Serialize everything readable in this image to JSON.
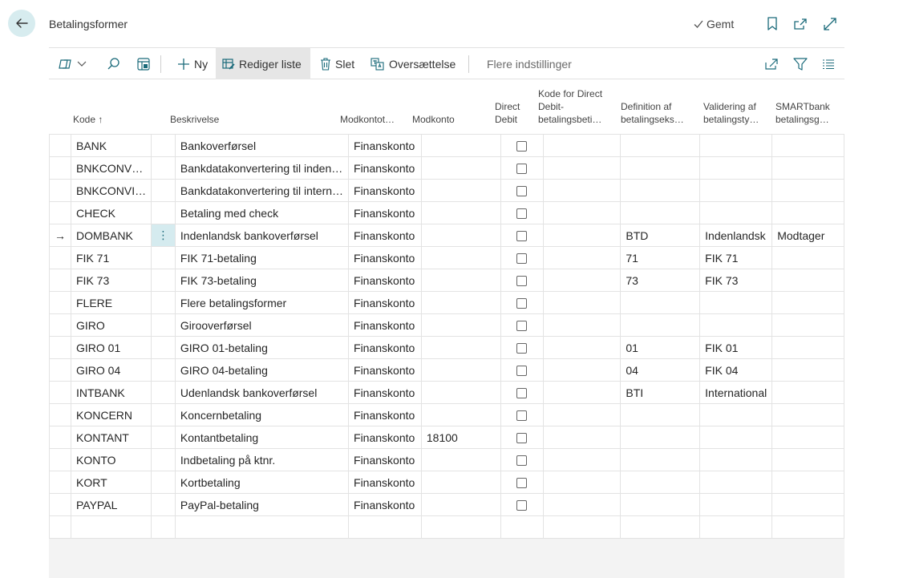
{
  "header": {
    "title": "Betalingsformer",
    "saved_label": "Gemt"
  },
  "toolbar": {
    "new_label": "Ny",
    "edit_list_label": "Rediger liste",
    "delete_label": "Slet",
    "translation_label": "Oversættelse",
    "more_options_label": "Flere indstillinger"
  },
  "columns": [
    {
      "label": "Kode ↑"
    },
    {
      "label": "Beskrivelse"
    },
    {
      "label": "Modkontot…"
    },
    {
      "label": "Modkonto"
    },
    {
      "label": "Direct\nDebit"
    },
    {
      "label": "Kode for Direct\nDebit-\nbetalingsbeti…"
    },
    {
      "label": "Definition af\nbetalingseks…"
    },
    {
      "label": "Validering af\nbetalingsty…"
    },
    {
      "label": "SMARTbank\nbetalingsg…"
    }
  ],
  "rows": [
    {
      "kode": "BANK",
      "beskrivelse": "Bankoverførsel",
      "modkontotype": "Finanskonto",
      "modkonto": "",
      "definition": "",
      "validering": "",
      "smartbank": ""
    },
    {
      "kode": "BNKCONV…",
      "beskrivelse": "Bankdatakonvertering til inden…",
      "modkontotype": "Finanskonto",
      "modkonto": "",
      "definition": "",
      "validering": "",
      "smartbank": ""
    },
    {
      "kode": "BNKCONVI…",
      "beskrivelse": "Bankdatakonvertering til intern…",
      "modkontotype": "Finanskonto",
      "modkonto": "",
      "definition": "",
      "validering": "",
      "smartbank": ""
    },
    {
      "kode": "CHECK",
      "beskrivelse": "Betaling med check",
      "modkontotype": "Finanskonto",
      "modkonto": "",
      "definition": "",
      "validering": "",
      "smartbank": ""
    },
    {
      "kode": "DOMBANK",
      "beskrivelse": "Indenlandsk bankoverførsel",
      "modkontotype": "Finanskonto",
      "modkonto": "",
      "definition": "BTD",
      "validering": "Indenlandsk",
      "smartbank": "Modtager"
    },
    {
      "kode": "FIK 71",
      "beskrivelse": "FIK 71-betaling",
      "modkontotype": "Finanskonto",
      "modkonto": "",
      "definition": "71",
      "validering": "FIK 71",
      "smartbank": ""
    },
    {
      "kode": "FIK 73",
      "beskrivelse": "FIK 73-betaling",
      "modkontotype": "Finanskonto",
      "modkonto": "",
      "definition": "73",
      "validering": "FIK 73",
      "smartbank": ""
    },
    {
      "kode": "FLERE",
      "beskrivelse": "Flere betalingsformer",
      "modkontotype": "Finanskonto",
      "modkonto": "",
      "definition": "",
      "validering": "",
      "smartbank": ""
    },
    {
      "kode": "GIRO",
      "beskrivelse": "Girooverførsel",
      "modkontotype": "Finanskonto",
      "modkonto": "",
      "definition": "",
      "validering": "",
      "smartbank": ""
    },
    {
      "kode": "GIRO 01",
      "beskrivelse": "GIRO 01-betaling",
      "modkontotype": "Finanskonto",
      "modkonto": "",
      "definition": "01",
      "validering": "FIK 01",
      "smartbank": ""
    },
    {
      "kode": "GIRO 04",
      "beskrivelse": "GIRO 04-betaling",
      "modkontotype": "Finanskonto",
      "modkonto": "",
      "definition": "04",
      "validering": "FIK 04",
      "smartbank": ""
    },
    {
      "kode": "INTBANK",
      "beskrivelse": "Udenlandsk bankoverførsel",
      "modkontotype": "Finanskonto",
      "modkonto": "",
      "definition": "BTI",
      "validering": "International",
      "smartbank": ""
    },
    {
      "kode": "KONCERN",
      "beskrivelse": "Koncernbetaling",
      "modkontotype": "Finanskonto",
      "modkonto": "",
      "definition": "",
      "validering": "",
      "smartbank": ""
    },
    {
      "kode": "KONTANT",
      "beskrivelse": "Kontantbetaling",
      "modkontotype": "Finanskonto",
      "modkonto": "18100",
      "definition": "",
      "validering": "",
      "smartbank": ""
    },
    {
      "kode": "KONTO",
      "beskrivelse": "Indbetaling på ktnr.",
      "modkontotype": "Finanskonto",
      "modkonto": "",
      "definition": "",
      "validering": "",
      "smartbank": ""
    },
    {
      "kode": "KORT",
      "beskrivelse": "Kortbetaling",
      "modkontotype": "Finanskonto",
      "modkonto": "",
      "definition": "",
      "validering": "",
      "smartbank": ""
    },
    {
      "kode": "PAYPAL",
      "beskrivelse": "PayPal-betaling",
      "modkontotype": "Finanskonto",
      "modkonto": "",
      "definition": "",
      "validering": "",
      "smartbank": ""
    }
  ],
  "selected_row": "DOMBANK",
  "colors": {
    "accent": "#1a6a7a",
    "selected_cell": "#d5ebef",
    "back_button": "#d7ecef"
  }
}
